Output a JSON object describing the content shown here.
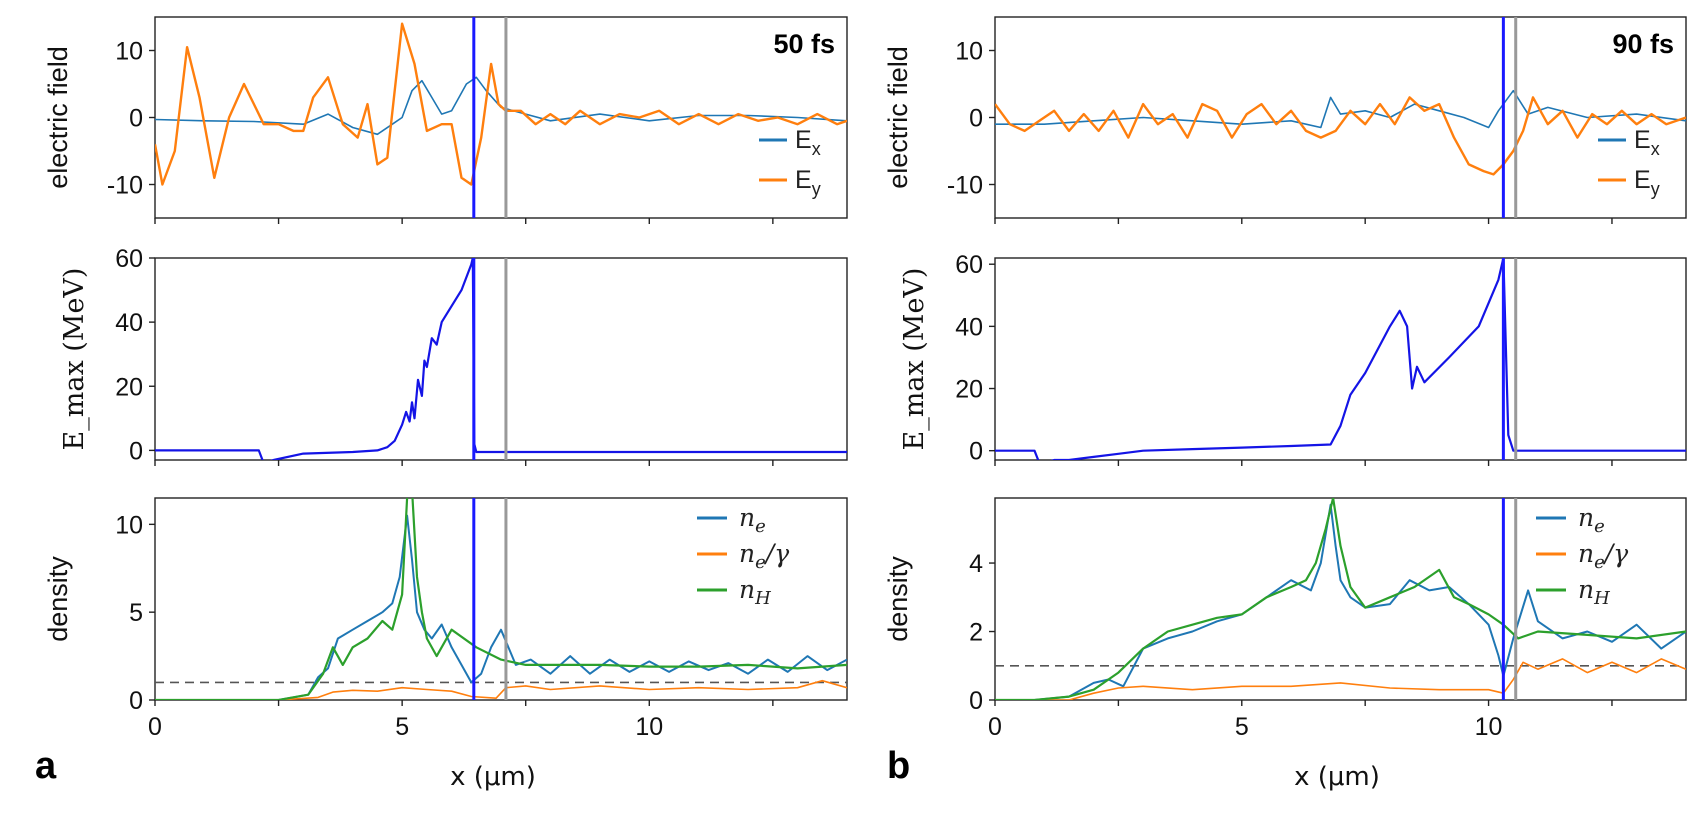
{
  "figure": {
    "panels": [
      {
        "id": "a",
        "letter": "a",
        "time_label": "50 fs",
        "xlabel": "x (μm)",
        "x_ticks": [
          "0",
          "5",
          "10"
        ],
        "blue_line_x": 6.45,
        "gray_line_x": 7.1
      },
      {
        "id": "b",
        "letter": "b",
        "time_label": "90 fs",
        "xlabel": "x (μm)",
        "x_ticks": [
          "0",
          "5",
          "10"
        ],
        "blue_line_x": 10.3,
        "gray_line_x": 10.55
      }
    ],
    "colors": {
      "ex": "#1f77b4",
      "ey": "#ff7f0e",
      "nh": "#2ca02c",
      "emax": "#1414e6",
      "front": "#1a1aff",
      "gray": "#999999",
      "dashed": "#555555"
    }
  },
  "chart_data": [
    {
      "panel": "a",
      "row": "electric field",
      "type": "line",
      "time": "50 fs",
      "ylabel": "electric field",
      "xlim": [
        0,
        14
      ],
      "ylim": [
        -15,
        15
      ],
      "yticks": [
        "-10",
        "0",
        "10"
      ],
      "legend": [
        "E_x",
        "E_y"
      ],
      "legend_position": "bottom-right",
      "series": [
        {
          "name": "E_x",
          "color_key": "ex",
          "width": 1.6,
          "x": [
            0,
            1,
            2,
            3,
            3.5,
            4,
            4.5,
            4.8,
            5,
            5.2,
            5.4,
            5.6,
            5.8,
            6,
            6.3,
            6.5,
            6.7,
            7,
            7.5,
            8,
            9,
            10,
            11,
            12,
            13,
            14
          ],
          "y": [
            -0.3,
            -0.5,
            -0.6,
            -1,
            0.5,
            -1.5,
            -2.5,
            -1,
            0,
            4,
            5.5,
            3,
            0.5,
            1,
            5,
            6,
            4,
            1.5,
            0.5,
            -0.5,
            0.5,
            -0.5,
            0.3,
            0.3,
            0,
            -0.5
          ]
        },
        {
          "name": "E_y",
          "color_key": "ey",
          "width": 2.4,
          "x": [
            0,
            0.15,
            0.4,
            0.65,
            0.9,
            1.2,
            1.5,
            1.8,
            2,
            2.2,
            2.5,
            2.8,
            3,
            3.2,
            3.5,
            3.8,
            4.1,
            4.3,
            4.5,
            4.7,
            5,
            5.25,
            5.5,
            5.8,
            6,
            6.2,
            6.4,
            6.6,
            6.8,
            6.95,
            7.1,
            7.4,
            7.7,
            8,
            8.3,
            8.6,
            9,
            9.4,
            9.8,
            10.2,
            10.6,
            11,
            11.4,
            11.8,
            12.2,
            12.6,
            13,
            13.4,
            13.8,
            14
          ],
          "y": [
            -4,
            -10,
            -5,
            10.5,
            3,
            -9,
            0,
            5,
            2,
            -1,
            -1,
            -2,
            -2,
            3,
            6,
            -1,
            -3,
            2,
            -7,
            -6,
            14,
            8,
            -2,
            -1,
            -1,
            -9,
            -10,
            -3,
            8,
            2,
            1,
            1,
            -1,
            0.5,
            -1,
            1,
            -1,
            0.5,
            0,
            1,
            -1,
            0.5,
            -1,
            0.5,
            -0.5,
            0,
            -1,
            0.5,
            -1,
            -0.5
          ]
        }
      ]
    },
    {
      "panel": "a",
      "row": "E_max",
      "type": "line",
      "ylabel": "E_max (MeV)",
      "xlim": [
        0,
        14
      ],
      "ylim": [
        -3,
        60
      ],
      "yticks": [
        "0",
        "20",
        "40",
        "60"
      ],
      "series": [
        {
          "name": "E_max",
          "color_key": "emax",
          "width": 2.2,
          "x": [
            0,
            2.1,
            2.2,
            2.4,
            3,
            4,
            4.5,
            4.7,
            4.85,
            5,
            5.08,
            5.15,
            5.2,
            5.25,
            5.32,
            5.4,
            5.45,
            5.5,
            5.6,
            5.7,
            5.8,
            6,
            6.2,
            6.4,
            6.43,
            6.46,
            6.5,
            14
          ],
          "y": [
            0,
            0,
            -4,
            -3,
            -1,
            -0.5,
            0,
            1,
            3,
            8,
            12,
            9,
            15,
            10,
            22,
            17,
            28,
            26,
            35,
            33,
            40,
            45,
            50,
            58,
            60,
            2,
            -0.5,
            -0.5
          ]
        }
      ]
    },
    {
      "panel": "a",
      "row": "density",
      "type": "line",
      "ylabel": "density",
      "xlim": [
        0,
        14
      ],
      "ylim": [
        0,
        11.5
      ],
      "yticks": [
        "0",
        "5",
        "10"
      ],
      "legend": [
        "n_e",
        "n_e/γ",
        "n_H"
      ],
      "legend_position": "top-right",
      "reference_line_y": 1,
      "series": [
        {
          "name": "n_e",
          "color_key": "ex",
          "width": 2.0,
          "x": [
            0,
            2.5,
            3.1,
            3.3,
            3.5,
            3.7,
            4,
            4.3,
            4.6,
            4.8,
            4.95,
            5.1,
            5.2,
            5.3,
            5.45,
            5.6,
            5.8,
            6,
            6.2,
            6.4,
            6.6,
            6.8,
            7,
            7.3,
            7.6,
            8,
            8.4,
            8.8,
            9.2,
            9.6,
            10,
            10.4,
            10.8,
            11.2,
            11.6,
            12,
            12.4,
            12.8,
            13.2,
            13.6,
            14
          ],
          "y": [
            0,
            0,
            0.3,
            1.3,
            1.8,
            3.5,
            4,
            4.5,
            5,
            5.5,
            7,
            10.5,
            8,
            5,
            4,
            3.5,
            4.3,
            3,
            2,
            1,
            1.5,
            3,
            4,
            2,
            2.3,
            1.5,
            2.5,
            1.5,
            2.3,
            1.6,
            2.2,
            1.6,
            2.2,
            1.7,
            2.1,
            1.5,
            2.3,
            1.6,
            2.5,
            1.7,
            2.3
          ]
        },
        {
          "name": "n_e/γ",
          "color_key": "ey",
          "width": 1.6,
          "x": [
            0,
            2.5,
            3.3,
            3.6,
            4,
            4.5,
            5,
            5.5,
            6,
            6.4,
            6.9,
            7.1,
            7.5,
            8,
            9,
            10,
            11,
            12,
            13,
            13.5,
            14
          ],
          "y": [
            0,
            0,
            0.15,
            0.45,
            0.55,
            0.5,
            0.7,
            0.6,
            0.5,
            0.2,
            0.1,
            0.7,
            0.8,
            0.6,
            0.8,
            0.6,
            0.7,
            0.6,
            0.7,
            1.1,
            0.7
          ]
        },
        {
          "name": "n_H",
          "color_key": "nh",
          "width": 2.2,
          "x": [
            0,
            2.5,
            3.1,
            3.4,
            3.6,
            3.8,
            4,
            4.3,
            4.6,
            4.8,
            5,
            5.1,
            5.2,
            5.3,
            5.4,
            5.5,
            5.7,
            6,
            6.5,
            7,
            7.5,
            8,
            9,
            10,
            11,
            12,
            13,
            14
          ],
          "y": [
            0,
            0,
            0.3,
            1.5,
            3,
            2,
            3,
            3.5,
            4.5,
            4,
            6,
            11.5,
            12,
            7,
            5,
            3.5,
            2.5,
            4,
            3,
            2.3,
            2,
            2,
            2,
            1.9,
            1.9,
            2,
            1.8,
            2
          ]
        }
      ]
    },
    {
      "panel": "b",
      "row": "electric field",
      "type": "line",
      "time": "90 fs",
      "ylabel": "electric field",
      "xlim": [
        0,
        14
      ],
      "ylim": [
        -15,
        15
      ],
      "yticks": [
        "-10",
        "0",
        "10"
      ],
      "legend": [
        "E_x",
        "E_y"
      ],
      "legend_position": "bottom-right",
      "series": [
        {
          "name": "E_x",
          "color_key": "ex",
          "width": 1.6,
          "x": [
            0,
            1,
            2,
            3,
            4,
            5,
            6,
            6.6,
            6.8,
            7,
            7.5,
            8,
            8.5,
            9,
            9.5,
            10,
            10.2,
            10.5,
            10.8,
            11.2,
            12,
            13,
            14
          ],
          "y": [
            -1,
            -1,
            -0.5,
            0,
            -0.5,
            -1,
            -0.5,
            -1.5,
            3,
            0.5,
            1,
            0,
            2,
            1,
            0,
            -1.5,
            1,
            4,
            0.5,
            1.5,
            0,
            0.5,
            -0.5
          ]
        },
        {
          "name": "E_y",
          "color_key": "ey",
          "width": 2.4,
          "x": [
            0,
            0.3,
            0.6,
            0.9,
            1.2,
            1.5,
            1.8,
            2.1,
            2.4,
            2.7,
            3,
            3.3,
            3.6,
            3.9,
            4.2,
            4.5,
            4.8,
            5.1,
            5.4,
            5.7,
            6,
            6.3,
            6.6,
            6.9,
            7.2,
            7.5,
            7.8,
            8.1,
            8.4,
            8.7,
            9,
            9.3,
            9.6,
            9.9,
            10.1,
            10.3,
            10.5,
            10.7,
            10.9,
            11.2,
            11.5,
            11.8,
            12.1,
            12.4,
            12.7,
            13,
            13.3,
            13.6,
            14
          ],
          "y": [
            2,
            -1,
            -2,
            -0.5,
            1,
            -2,
            0.5,
            -2,
            1,
            -3,
            2,
            -1,
            0.5,
            -3,
            2,
            1,
            -3,
            0.5,
            2,
            -1,
            1,
            -2,
            -3,
            -2,
            1,
            -1,
            2,
            -1,
            3,
            1,
            2,
            -3,
            -7,
            -8,
            -8.5,
            -7,
            -5,
            -2,
            3,
            -1,
            1,
            -3,
            0.5,
            -1,
            1,
            -1,
            0.5,
            -1,
            0
          ]
        }
      ]
    },
    {
      "panel": "b",
      "row": "E_max",
      "type": "line",
      "ylabel": "E_max (MeV)",
      "xlim": [
        0,
        14
      ],
      "ylim": [
        -3,
        62
      ],
      "yticks": [
        "0",
        "20",
        "40",
        "60"
      ],
      "series": [
        {
          "name": "E_max",
          "color_key": "emax",
          "width": 2.2,
          "x": [
            0,
            0.8,
            0.9,
            1,
            1.2,
            1.5,
            2,
            2.5,
            3,
            4,
            5,
            6,
            6.8,
            7,
            7.2,
            7.5,
            8,
            8.2,
            8.35,
            8.45,
            8.55,
            8.7,
            9.2,
            9.8,
            10.2,
            10.3,
            10.4,
            10.5,
            14
          ],
          "y": [
            0,
            0,
            -4,
            -4,
            -3,
            -3,
            -2,
            -1,
            0,
            0.5,
            1,
            1.5,
            2,
            8,
            18,
            25,
            40,
            45,
            40,
            20,
            27,
            22,
            30,
            40,
            55,
            62,
            5,
            0,
            0
          ]
        }
      ]
    },
    {
      "panel": "b",
      "row": "density",
      "type": "line",
      "ylabel": "density",
      "xlim": [
        0,
        14
      ],
      "ylim": [
        0,
        5.9
      ],
      "yticks": [
        "0",
        "2",
        "4"
      ],
      "legend": [
        "n_e",
        "n_e/γ",
        "n_H"
      ],
      "legend_position": "top-right",
      "reference_line_y": 1,
      "series": [
        {
          "name": "n_e",
          "color_key": "ex",
          "width": 2.0,
          "x": [
            0,
            0.8,
            1.5,
            2,
            2.3,
            2.6,
            3,
            3.5,
            4,
            4.5,
            5,
            5.5,
            6,
            6.4,
            6.6,
            6.8,
            6.9,
            7,
            7.2,
            7.5,
            8,
            8.4,
            8.8,
            9.2,
            9.6,
            10,
            10.2,
            10.3,
            10.5,
            10.8,
            11,
            11.5,
            12,
            12.5,
            13,
            13.5,
            14
          ],
          "y": [
            0,
            0,
            0.1,
            0.5,
            0.6,
            0.4,
            1.5,
            1.8,
            2,
            2.3,
            2.5,
            3,
            3.5,
            3.2,
            4,
            5.7,
            4.5,
            3.5,
            3,
            2.7,
            2.8,
            3.5,
            3.2,
            3.3,
            2.8,
            2.2,
            1.3,
            0.7,
            1.8,
            3.2,
            2.3,
            1.8,
            2,
            1.7,
            2.2,
            1.5,
            2
          ]
        },
        {
          "name": "n_e/γ",
          "color_key": "ey",
          "width": 1.6,
          "x": [
            0,
            1.5,
            2,
            2.5,
            3,
            4,
            5,
            6,
            7,
            8,
            9,
            10,
            10.3,
            10.5,
            10.7,
            11,
            11.5,
            12,
            12.5,
            13,
            13.5,
            14
          ],
          "y": [
            0,
            0,
            0.2,
            0.35,
            0.4,
            0.3,
            0.4,
            0.4,
            0.5,
            0.35,
            0.3,
            0.3,
            0.2,
            0.6,
            1.1,
            0.9,
            1.2,
            0.8,
            1.1,
            0.8,
            1.2,
            0.9
          ]
        },
        {
          "name": "n_H",
          "color_key": "nh",
          "width": 2.2,
          "x": [
            0,
            0.8,
            1.5,
            2,
            2.5,
            3,
            3.5,
            4,
            4.5,
            5,
            5.5,
            6,
            6.3,
            6.5,
            6.7,
            6.85,
            7,
            7.2,
            7.5,
            8,
            8.5,
            9,
            9.3,
            9.6,
            10,
            10.3,
            10.6,
            11,
            12,
            13,
            14
          ],
          "y": [
            0,
            0,
            0.1,
            0.3,
            0.8,
            1.5,
            2,
            2.2,
            2.4,
            2.5,
            3,
            3.3,
            3.5,
            4,
            5,
            5.9,
            4.5,
            3.3,
            2.7,
            3,
            3.3,
            3.8,
            3,
            2.8,
            2.5,
            2.2,
            1.8,
            2,
            1.9,
            1.8,
            2
          ]
        }
      ]
    }
  ]
}
